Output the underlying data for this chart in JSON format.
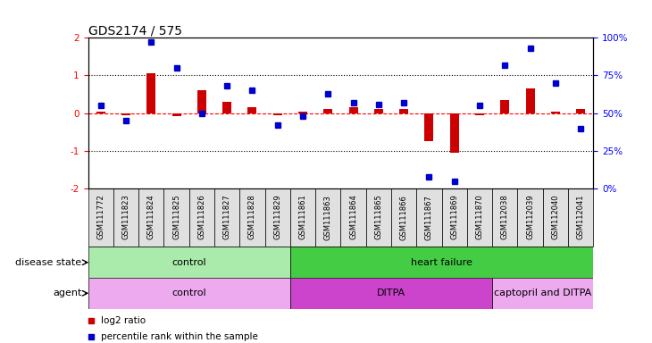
{
  "title": "GDS2174 / 575",
  "samples": [
    "GSM111772",
    "GSM111823",
    "GSM111824",
    "GSM111825",
    "GSM111826",
    "GSM111827",
    "GSM111828",
    "GSM111829",
    "GSM111861",
    "GSM111863",
    "GSM111864",
    "GSM111865",
    "GSM111866",
    "GSM111867",
    "GSM111869",
    "GSM111870",
    "GSM112038",
    "GSM112039",
    "GSM112040",
    "GSM112041"
  ],
  "log2_ratio": [
    0.05,
    -0.05,
    1.05,
    -0.07,
    0.6,
    0.3,
    0.15,
    -0.05,
    0.05,
    0.1,
    0.15,
    0.1,
    0.1,
    -0.75,
    -1.05,
    -0.05,
    0.35,
    0.65,
    0.05,
    0.1
  ],
  "percentile": [
    55,
    45,
    97,
    80,
    50,
    68,
    65,
    42,
    48,
    63,
    57,
    56,
    57,
    8,
    5,
    55,
    82,
    93,
    70,
    40
  ],
  "bar_color": "#cc0000",
  "dot_color": "#0000cc",
  "disease_groups": [
    {
      "label": "control",
      "start": 0,
      "end": 7,
      "color": "#aaeaaa"
    },
    {
      "label": "heart failure",
      "start": 8,
      "end": 19,
      "color": "#44cc44"
    }
  ],
  "agent_groups": [
    {
      "label": "control",
      "start": 0,
      "end": 7,
      "color": "#eeaaee"
    },
    {
      "label": "DITPA",
      "start": 8,
      "end": 15,
      "color": "#cc44cc"
    },
    {
      "label": "captopril and DITPA",
      "start": 16,
      "end": 19,
      "color": "#eeaaee"
    }
  ],
  "legend_items": [
    {
      "label": "log2 ratio",
      "color": "#cc0000"
    },
    {
      "label": "percentile rank within the sample",
      "color": "#0000cc"
    }
  ],
  "row_label_disease": "disease state",
  "row_label_agent": "agent",
  "bg_color": "#ffffff",
  "title_fontsize": 10,
  "tick_fontsize": 7.5,
  "sample_fontsize": 6,
  "label_fontsize": 8
}
